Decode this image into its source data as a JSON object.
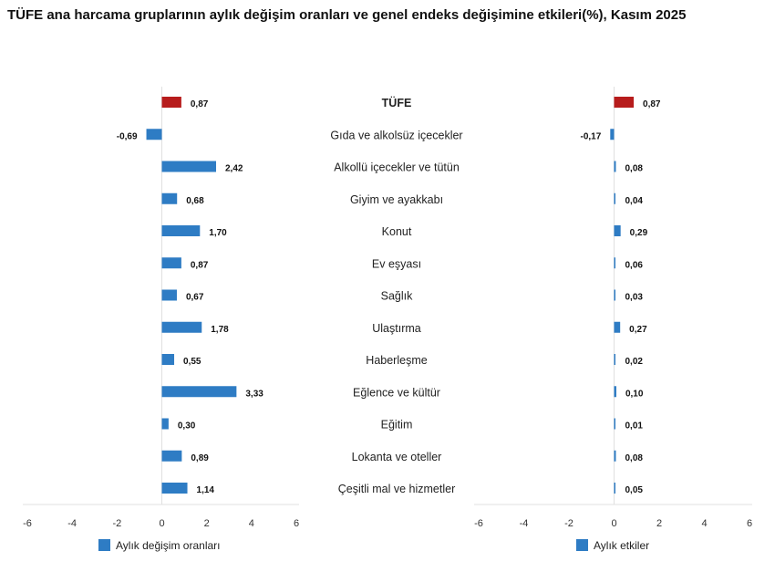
{
  "title": "TÜFE ana harcama gruplarının aylık değişim oranları ve genel endeks değişimine etkileri(%), Kasım 2025",
  "colors": {
    "highlight": "#b71c1c",
    "bar": "#2e7cc4",
    "axis": "#e0e0e0"
  },
  "chart_data": [
    {
      "type": "bar",
      "orientation": "horizontal",
      "categories": [
        "TÜFE",
        "Gıda ve alkolsüz içecekler",
        "Alkollü içecekler ve tütün",
        "Giyim ve ayakkabı",
        "Konut",
        "Ev eşyası",
        "Sağlık",
        "Ulaştırma",
        "Haberleşme",
        "Eğlence ve kültür",
        "Eğitim",
        "Lokanta ve oteller",
        "Çeşitli mal ve hizmetler"
      ],
      "series": [
        {
          "name": "Aylık değişim oranları",
          "values": [
            0.87,
            -0.69,
            2.42,
            0.68,
            1.7,
            0.87,
            0.67,
            1.78,
            0.55,
            3.33,
            0.3,
            0.89,
            1.14
          ],
          "labels": [
            "0,87",
            "-0,69",
            "2,42",
            "0,68",
            "1,70",
            "0,87",
            "0,67",
            "1,78",
            "0,55",
            "3,33",
            "0,30",
            "0,89",
            "1,14"
          ]
        }
      ],
      "xlim": [
        -6,
        6
      ],
      "xticks": [
        "-6",
        "-4",
        "-2",
        "0",
        "2",
        "4",
        "6"
      ],
      "legend": "bottom",
      "grid": false
    },
    {
      "type": "bar",
      "orientation": "horizontal",
      "series": [
        {
          "name": "Aylık etkiler",
          "values": [
            0.87,
            -0.17,
            0.08,
            0.04,
            0.29,
            0.06,
            0.03,
            0.27,
            0.02,
            0.1,
            0.01,
            0.08,
            0.05
          ],
          "labels": [
            "0,87",
            "-0,17",
            "0,08",
            "0,04",
            "0,29",
            "0,06",
            "0,03",
            "0,27",
            "0,02",
            "0,10",
            "0,01",
            "0,08",
            "0,05"
          ]
        }
      ],
      "xlim": [
        -6,
        6
      ],
      "xticks": [
        "-6",
        "-4",
        "-2",
        "0",
        "2",
        "4",
        "6"
      ],
      "legend": "bottom",
      "grid": false
    }
  ]
}
